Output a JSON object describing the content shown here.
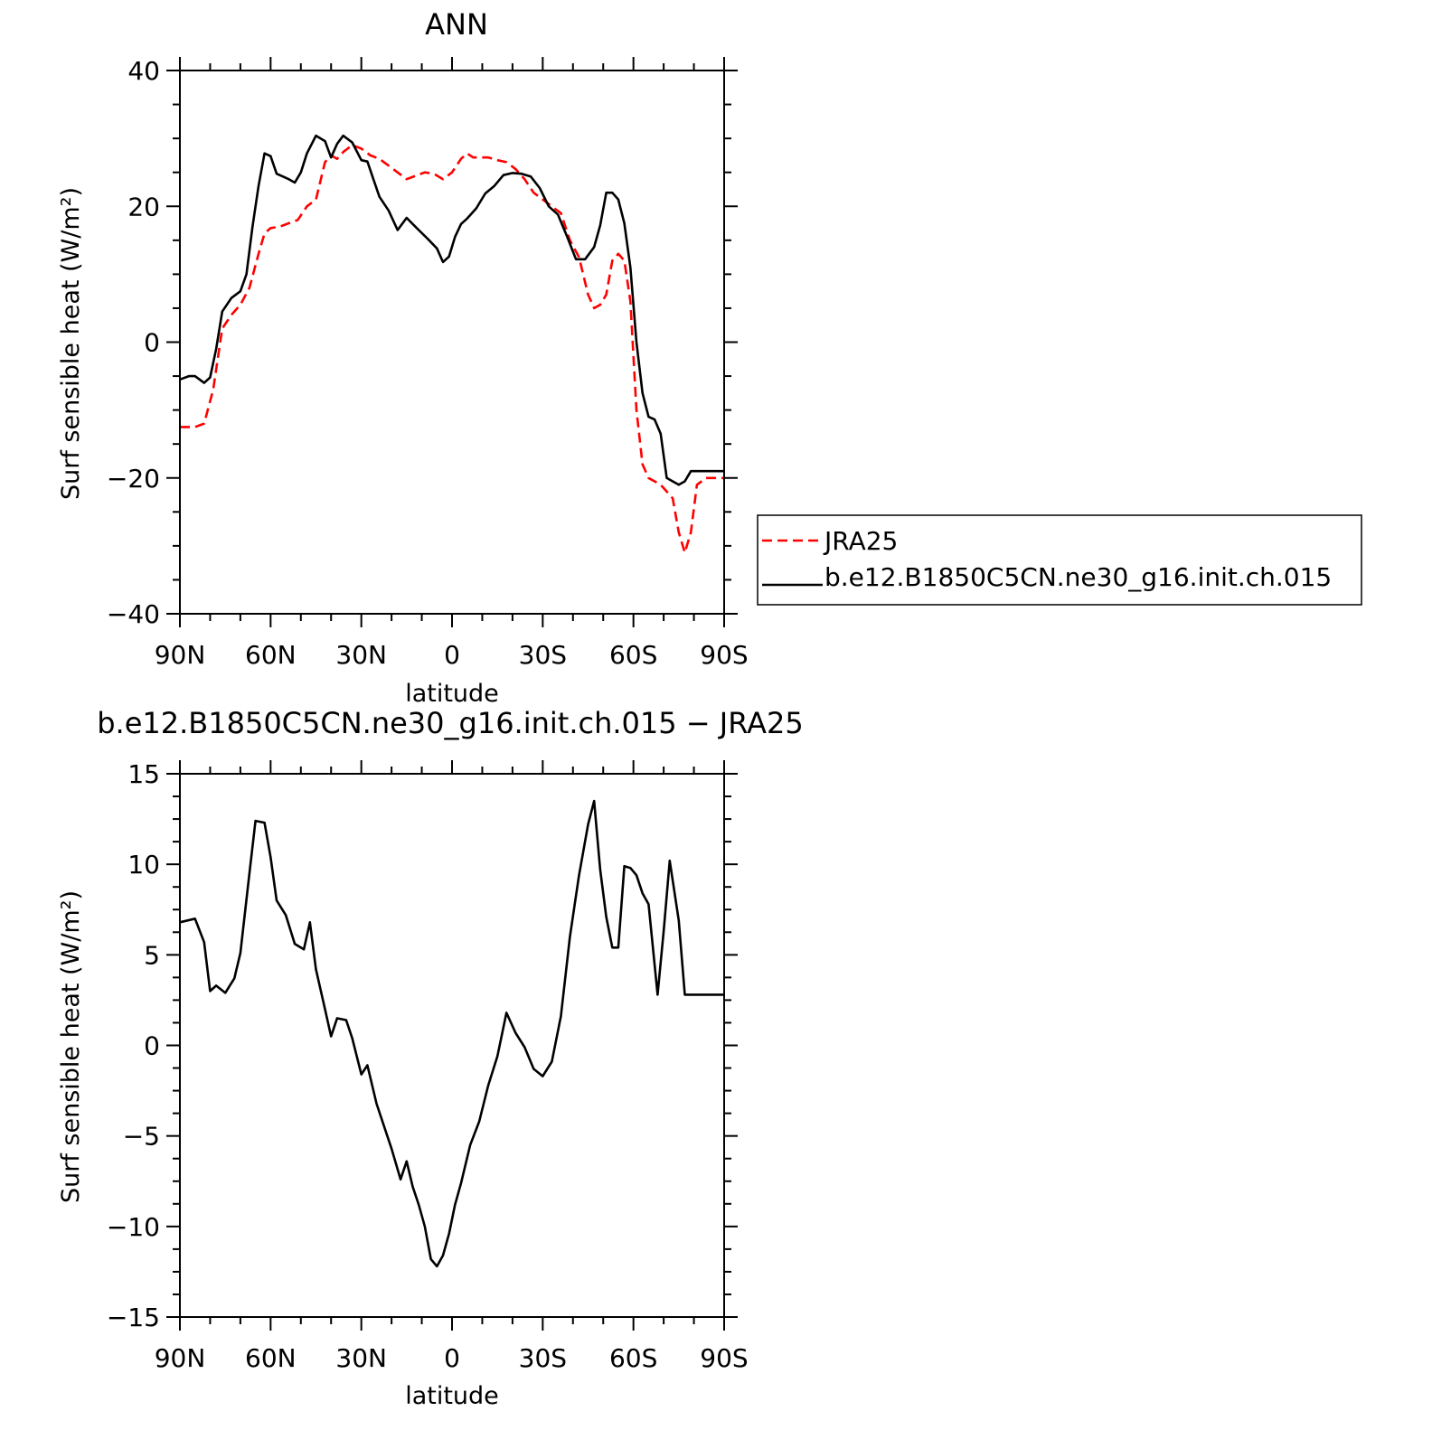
{
  "chart_data": [
    {
      "type": "line",
      "title": "ANN",
      "xlabel": "latitude",
      "ylabel": "Surf sensible heat (W/m²)",
      "xlim": [
        90,
        -90
      ],
      "ylim": [
        -40,
        40
      ],
      "x_ticks": [
        90,
        60,
        30,
        0,
        -30,
        -60,
        -90
      ],
      "x_tick_labels": [
        "90N",
        "60N",
        "30N",
        "0",
        "30S",
        "60S",
        "90S"
      ],
      "y_ticks": [
        40,
        20,
        0,
        -20,
        -40
      ],
      "y_tick_labels": [
        "40",
        "20",
        "0",
        "−20",
        "−40"
      ],
      "legend": "right",
      "series": [
        {
          "name": "JRA25",
          "color": "#ff0000",
          "style": "dashed",
          "x": [
            90,
            85,
            82,
            79,
            76,
            73,
            70,
            67,
            64,
            62,
            60,
            57,
            54,
            51,
            48,
            45,
            42,
            40,
            38,
            36,
            33,
            30,
            27,
            24,
            21,
            18,
            15,
            12,
            9,
            6,
            3,
            0,
            -3,
            -5,
            -7,
            -9,
            -12,
            -15,
            -18,
            -21,
            -24,
            -27,
            -30,
            -33,
            -36,
            -39,
            -42,
            -45,
            -47,
            -49,
            -51,
            -53,
            -55,
            -57,
            -59,
            -61,
            -63,
            -65,
            -67,
            -69,
            -71,
            -73,
            -75,
            -77,
            -79,
            -81,
            -84,
            -86,
            -88,
            -90
          ],
          "y": [
            -12.5,
            -12.5,
            -12,
            -7,
            2,
            4,
            5.5,
            8,
            13,
            16,
            16.8,
            17,
            17.5,
            18,
            20,
            21,
            26.5,
            27.5,
            27,
            28,
            29,
            28.5,
            27.5,
            27,
            26,
            25,
            24,
            24.5,
            25,
            24.8,
            24,
            25,
            27,
            27.8,
            27.2,
            27.2,
            27.2,
            26.8,
            26.5,
            25.5,
            24,
            22,
            21,
            20,
            19,
            15,
            12.5,
            7,
            5,
            5.5,
            7,
            12,
            13,
            12,
            6,
            -10,
            -18,
            -20,
            -20.5,
            -21,
            -22,
            -23,
            -28,
            -31,
            -28,
            -21,
            -20,
            -20,
            -20,
            -20
          ]
        },
        {
          "name": "b.e12.B1850C5CN.ne30_g16.init.ch.015",
          "color": "#000000",
          "style": "solid",
          "x": [
            90,
            87,
            85,
            82,
            80,
            78,
            76,
            73,
            70,
            68,
            66,
            64,
            62,
            60,
            58,
            56,
            54,
            52,
            50,
            48,
            45,
            42,
            40,
            38,
            36,
            33,
            30,
            28,
            26,
            24,
            21,
            18,
            15,
            13,
            11,
            8,
            5,
            3,
            1,
            -1,
            -3,
            -5,
            -8,
            -11,
            -14,
            -17,
            -20,
            -23,
            -26,
            -29,
            -32,
            -35,
            -38,
            -41,
            -44,
            -47,
            -49,
            -51,
            -53,
            -55,
            -57,
            -59,
            -61,
            -63,
            -65,
            -67,
            -69,
            -71,
            -73,
            -75,
            -77,
            -79,
            -81,
            -84,
            -86,
            -88,
            -90
          ],
          "y": [
            -5.5,
            -5,
            -5,
            -6,
            -5.2,
            -1,
            4.5,
            6.5,
            7.5,
            10,
            17,
            23,
            27.8,
            27.4,
            24.8,
            24.4,
            24,
            23.5,
            25,
            27.8,
            30.4,
            29.6,
            27.2,
            29.2,
            30.4,
            29.4,
            26.8,
            26.6,
            24,
            21.4,
            19.4,
            16.5,
            18.3,
            17.4,
            16.5,
            15.2,
            13.8,
            11.8,
            12.6,
            15.5,
            17.4,
            18.2,
            19.7,
            21.9,
            23,
            24.6,
            24.9,
            24.8,
            24.4,
            22.7,
            20,
            18.8,
            15.6,
            12.2,
            12.2,
            14,
            17.2,
            22,
            22,
            21,
            17.5,
            11,
            0,
            -7.5,
            -11,
            -11.4,
            -13.5,
            -20,
            -20.5,
            -21,
            -20.5,
            -19,
            -19,
            -19,
            -19,
            -19,
            -19
          ]
        }
      ]
    },
    {
      "type": "line",
      "title": "b.e12.B1850C5CN.ne30_g16.init.ch.015 − JRA25",
      "xlabel": "latitude",
      "ylabel": "Surf sensible heat (W/m²)",
      "xlim": [
        90,
        -90
      ],
      "ylim": [
        -15,
        15
      ],
      "x_ticks": [
        90,
        60,
        30,
        0,
        -30,
        -60,
        -90
      ],
      "x_tick_labels": [
        "90N",
        "60N",
        "30N",
        "0",
        "30S",
        "60S",
        "90S"
      ],
      "y_ticks": [
        15,
        10,
        5,
        0,
        -5,
        -10,
        -15
      ],
      "y_tick_labels": [
        "15",
        "10",
        "5",
        "0",
        "−5",
        "−10",
        "−15"
      ],
      "series": [
        {
          "color": "#000000",
          "style": "solid",
          "x": [
            90,
            85,
            82,
            80,
            78,
            75,
            72,
            70,
            67,
            65,
            62,
            60,
            58,
            55,
            52,
            49,
            47,
            45,
            42,
            40,
            38,
            35,
            33,
            30,
            28,
            25,
            22,
            20,
            17,
            15,
            13,
            11,
            9,
            7,
            5,
            3,
            1,
            -1,
            -3,
            -6,
            -9,
            -12,
            -15,
            -18,
            -21,
            -24,
            -27,
            -30,
            -33,
            -36,
            -39,
            -42,
            -45,
            -47,
            -49,
            -51,
            -53,
            -55,
            -57,
            -59,
            -61,
            -63,
            -65,
            -68,
            -70,
            -72,
            -75,
            -77,
            -79,
            -81,
            -84,
            -86,
            -88,
            -90
          ],
          "y": [
            6.8,
            7,
            5.7,
            3,
            3.3,
            2.9,
            3.7,
            5.1,
            9.5,
            12.4,
            12.3,
            10.4,
            8,
            7.2,
            5.6,
            5.3,
            6.8,
            4.2,
            2,
            0.5,
            1.5,
            1.4,
            0.4,
            -1.6,
            -1.1,
            -3.2,
            -4.7,
            -5.7,
            -7.4,
            -6.4,
            -7.8,
            -8.8,
            -10,
            -11.8,
            -12.2,
            -11.6,
            -10.4,
            -8.8,
            -7.6,
            -5.5,
            -4.2,
            -2.2,
            -0.6,
            1.8,
            0.7,
            -0.1,
            -1.3,
            -1.7,
            -0.9,
            1.6,
            6,
            9.4,
            12.2,
            13.5,
            9.7,
            7.1,
            5.4,
            5.4,
            9.9,
            9.8,
            9.4,
            8.4,
            7.8,
            2.8,
            6.3,
            10.2,
            6.9,
            2.8,
            2.8,
            2.8,
            2.8,
            2.8,
            2.8,
            2.8
          ]
        }
      ]
    }
  ]
}
